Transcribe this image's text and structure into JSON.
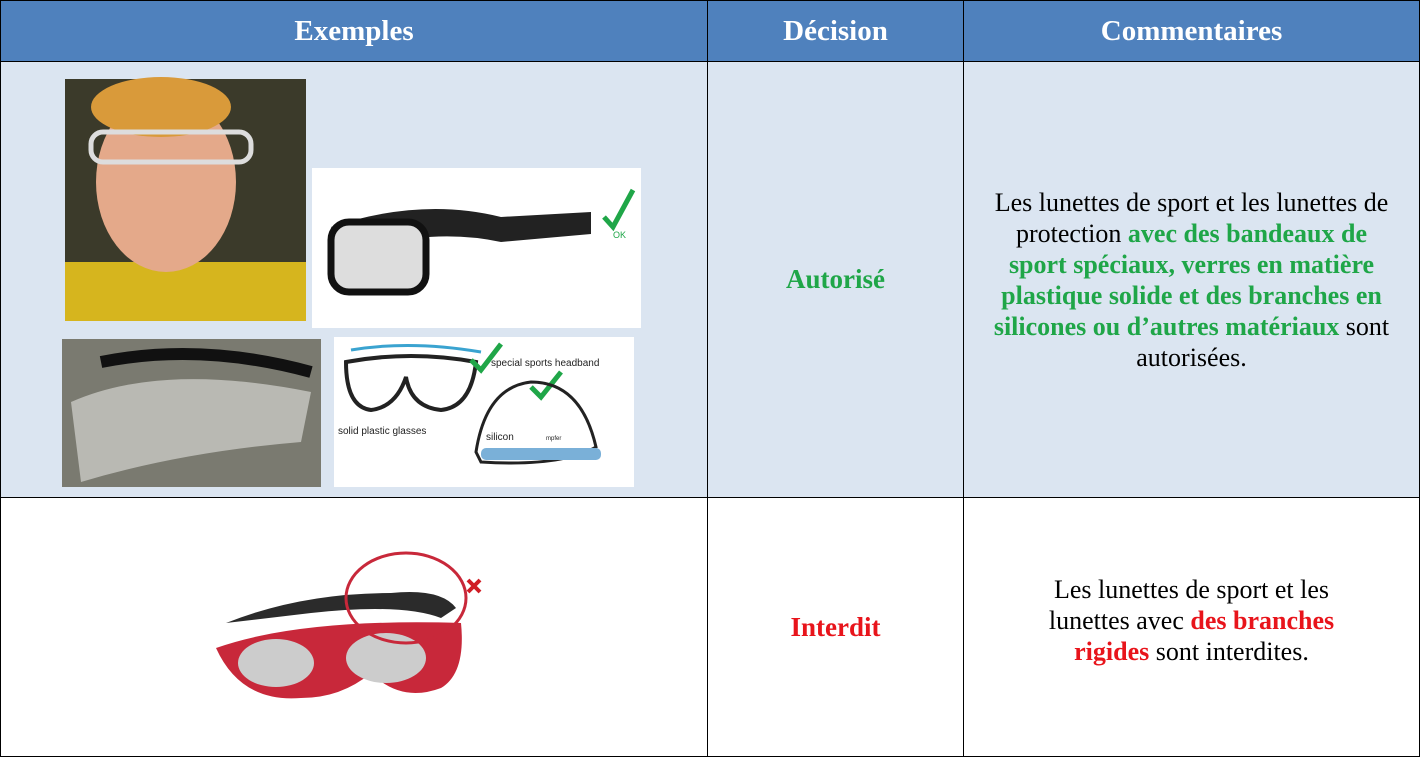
{
  "table": {
    "header": [
      "Exemples",
      "Décision",
      "Commentaires"
    ],
    "rows": [
      {
        "decision": "Autorisé",
        "color": "#1fa648",
        "comment": {
          "before": "Les lunettes de sport et les lunettes de protection ",
          "highlight": "avec des bandeaux de sport spéciaux, verres en matière plastique solide et des branches en silicones ou d’autres matériaux",
          "after": " sont autorisées."
        },
        "image_labels": [
          "OK",
          "special sports headband",
          "solid plastic glasses",
          "silicon",
          "mpfer"
        ]
      },
      {
        "decision": "Interdit",
        "color": "#e8141b",
        "comment": {
          "before": "Les lunettes de sport et les lunettes avec ",
          "highlight": "des branches rigides",
          "after": " sont interdites."
        }
      }
    ]
  }
}
